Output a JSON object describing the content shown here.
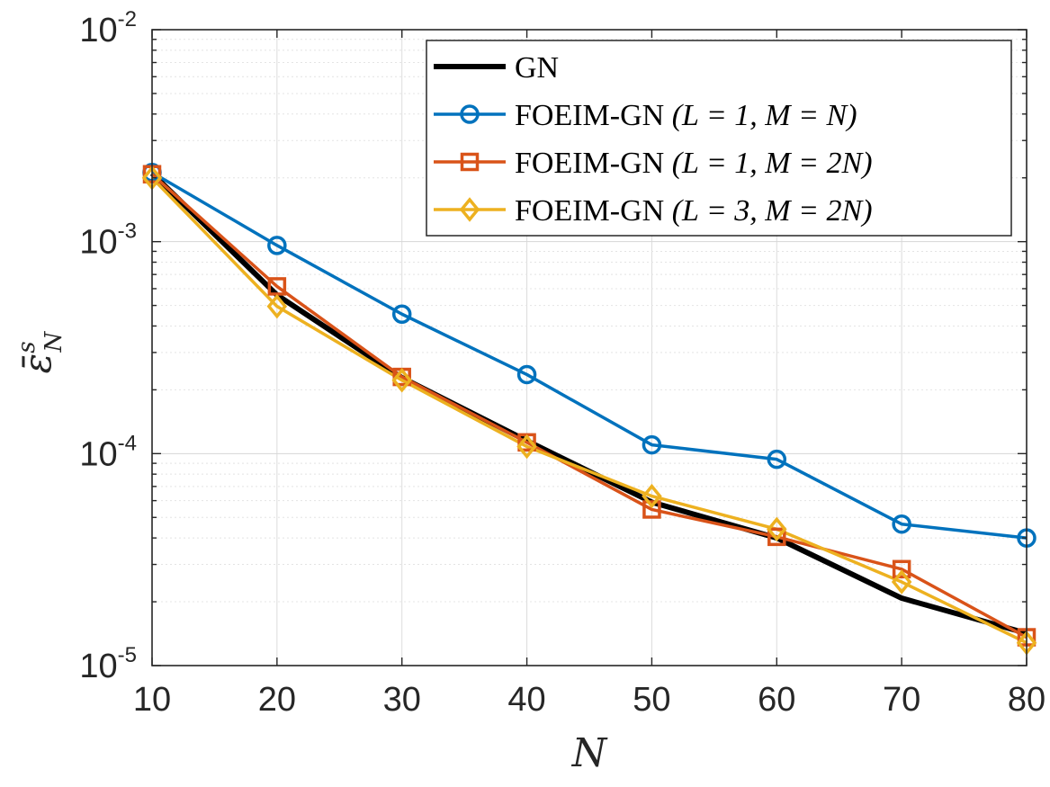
{
  "chart_data": {
    "type": "line",
    "xlabel": "N",
    "ylabel": {
      "base": "ε̄",
      "superscript": "s",
      "subscript": "N"
    },
    "xlim": [
      10,
      80
    ],
    "ylim": [
      1e-05,
      0.01
    ],
    "yscale": "log",
    "grid": true,
    "x": [
      10,
      20,
      30,
      40,
      50,
      60,
      70,
      80
    ],
    "x_ticks": [
      "10",
      "20",
      "30",
      "40",
      "50",
      "60",
      "70",
      "80"
    ],
    "y_ticks": [
      {
        "value": 0.01,
        "base": "10",
        "exp": "-2"
      },
      {
        "value": 0.001,
        "base": "10",
        "exp": "-3"
      },
      {
        "value": 0.0001,
        "base": "10",
        "exp": "-4"
      },
      {
        "value": 1e-05,
        "base": "10",
        "exp": "-5"
      }
    ],
    "legend_position": "top-right",
    "series": [
      {
        "name": "GN",
        "legend_text": "GN",
        "legend_math": "",
        "color": "#000000",
        "marker": "none",
        "values": [
          0.0021,
          0.00056,
          0.000228,
          0.000115,
          5.9e-05,
          4e-05,
          2.08e-05,
          1.42e-05
        ]
      },
      {
        "name": "FOEIM-GN (L = 1, M = N)",
        "legend_text": "FOEIM-GN ",
        "legend_math": "(L = 1, M = N)",
        "color": "#0072BD",
        "marker": "circle",
        "values": [
          0.00212,
          0.00096,
          0.000455,
          0.000236,
          0.00011,
          9.4e-05,
          4.65e-05,
          4e-05
        ]
      },
      {
        "name": "FOEIM-GN (L = 1, M = 2N)",
        "legend_text": "FOEIM-GN ",
        "legend_math": "(L = 1, M = 2N)",
        "color": "#D95319",
        "marker": "square",
        "values": [
          0.00208,
          0.000615,
          0.00023,
          0.000113,
          5.45e-05,
          4.05e-05,
          2.85e-05,
          1.36e-05
        ]
      },
      {
        "name": "FOEIM-GN (L = 3, M = 2N)",
        "legend_text": "FOEIM-GN ",
        "legend_math": "(L = 3, M = 2N)",
        "color": "#EDB120",
        "marker": "diamond",
        "values": [
          0.002,
          0.000495,
          0.000222,
          0.000108,
          6.3e-05,
          4.4e-05,
          2.48e-05,
          1.28e-05
        ]
      }
    ]
  }
}
